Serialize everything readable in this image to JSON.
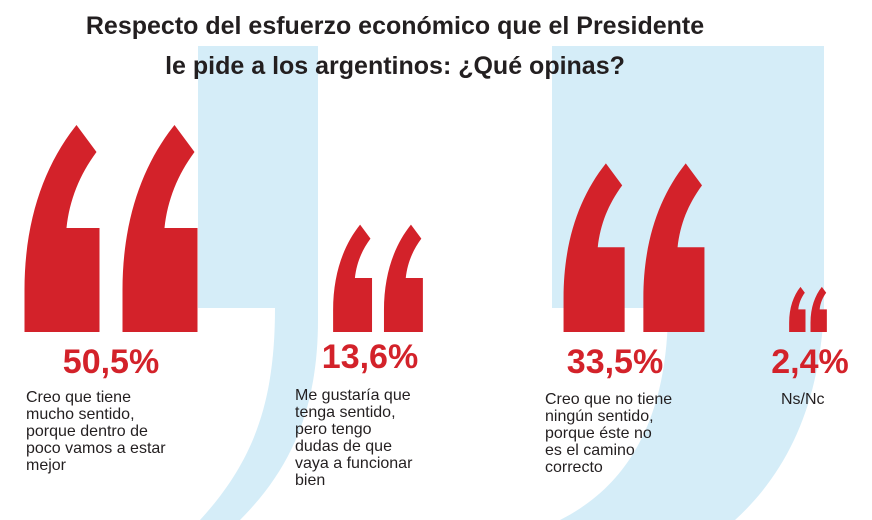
{
  "title": {
    "line1": "Respecto del esfuerzo económico que el Presidente",
    "line2": "le pide a los argentinos: ¿Qué opinas?"
  },
  "colors": {
    "accent": "#d3222a",
    "background_quote": "#d5edf8",
    "text": "#231f20"
  },
  "chart_data": {
    "type": "pictogram",
    "title": "Respecto del esfuerzo económico que el Presidente le pide a los argentinos: ¿Qué opinas?",
    "unit": "%",
    "items": [
      {
        "value": 50.5,
        "label": "50,5%",
        "description": "Creo que tiene\nmucho sentido,\nporque dentro de\npoco vamos a estar\nmejor"
      },
      {
        "value": 13.6,
        "label": "13,6%",
        "description": "Me gustaría que\ntenga sentido,\npero tengo\ndudas de que\nvaya a funcionar\nbien"
      },
      {
        "value": 33.5,
        "label": "33,5%",
        "description": "Creo que no tiene\nningún sentido,\nporque éste no\nes el camino\ncorrecto"
      },
      {
        "value": 2.4,
        "label": "2,4%",
        "description": "Ns/Nc"
      }
    ]
  }
}
